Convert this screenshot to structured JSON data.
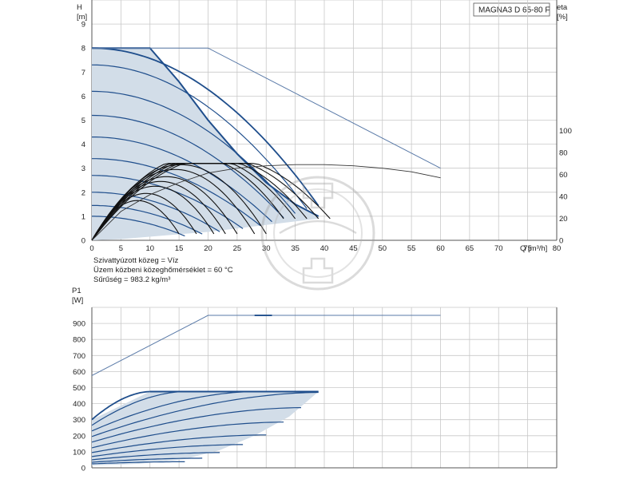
{
  "model": "MAGNA3 D 65-80 F",
  "info_lines": [
    "Szivattyúzott közeg = Víz",
    "Üzem közbeni közeghőmérséklet = 60 °C",
    "Sűrűség = 983.2 kg/m³"
  ],
  "chart_data": [
    {
      "type": "line",
      "title": "",
      "xlabel": "Q [m³/h]",
      "ylabel_unit": "[m]",
      "ylabel": "H",
      "y2label": "eta",
      "y2label_unit": "[%]",
      "xlim": [
        0,
        80
      ],
      "ylim": [
        0,
        10
      ],
      "y2lim": [
        0,
        100
      ],
      "grid": true,
      "x_ticks": [
        "0",
        "5",
        "10",
        "15",
        "20",
        "25",
        "30",
        "35",
        "40",
        "45",
        "50",
        "55",
        "60",
        "65",
        "70",
        "75",
        "80"
      ],
      "y_ticks": [
        "0",
        "1",
        "2",
        "3",
        "4",
        "5",
        "6",
        "7",
        "8",
        "9"
      ],
      "y2_ticks": [
        "0",
        "20",
        "40",
        "60",
        "80",
        "100"
      ],
      "operating_envelope": {
        "x": [
          0,
          10,
          15,
          20,
          25,
          30,
          35,
          39
        ],
        "y": [
          8,
          8,
          6.6,
          5.0,
          3.6,
          2.4,
          1.5,
          1.0
        ]
      },
      "max_curve_single_pump": {
        "x": [
          0,
          20,
          60
        ],
        "y": [
          8,
          8,
          3.0
        ]
      },
      "efficiency_envelope": {
        "x": [
          0,
          5,
          10,
          15,
          20,
          25,
          30,
          35,
          40,
          45,
          50,
          55,
          60
        ],
        "y": [
          0,
          1.2,
          1.9,
          2.4,
          2.8,
          3.0,
          3.1,
          3.15,
          3.15,
          3.1,
          3.0,
          2.85,
          2.6
        ]
      },
      "head_curves": [
        {
          "h0": 8.0,
          "q_end": 39
        },
        {
          "h0": 7.3,
          "q_end": 37
        },
        {
          "h0": 6.2,
          "q_end": 35
        },
        {
          "h0": 5.2,
          "q_end": 33
        },
        {
          "h0": 4.3,
          "q_end": 31
        },
        {
          "h0": 3.4,
          "q_end": 29
        },
        {
          "h0": 2.7,
          "q_end": 26
        },
        {
          "h0": 2.0,
          "q_end": 22
        },
        {
          "h0": 1.45,
          "q_end": 19
        },
        {
          "h0": 1.0,
          "q_end": 16
        }
      ],
      "efficiency_arcs_q_end": [
        15,
        18,
        21,
        23,
        25,
        28,
        30,
        33,
        35,
        37,
        39,
        41
      ]
    },
    {
      "type": "line",
      "title": "",
      "ylabel": "P1",
      "ylabel_unit": "[W]",
      "xlim": [
        0,
        80
      ],
      "ylim": [
        0,
        1000
      ],
      "grid": true,
      "y_ticks": [
        "0",
        "100",
        "200",
        "300",
        "400",
        "500",
        "600",
        "700",
        "800",
        "900"
      ],
      "max_power_curve": {
        "x": [
          0,
          20,
          60
        ],
        "y": [
          575,
          950,
          950
        ]
      },
      "power_envelope": {
        "x": [
          0,
          10,
          39,
          39,
          30,
          20,
          10,
          0
        ],
        "y": [
          300,
          475,
          475,
          475,
          270,
          100,
          40,
          20
        ]
      },
      "power_curves": [
        {
          "p0": 300,
          "p_end": 475,
          "q_end": 10
        },
        {
          "p0": 265,
          "p_end": 475,
          "q_end": 16
        },
        {
          "p0": 230,
          "p_end": 475,
          "q_end": 28
        },
        {
          "p0": 195,
          "p_end": 470,
          "q_end": 39
        },
        {
          "p0": 160,
          "p_end": 375,
          "q_end": 36
        },
        {
          "p0": 125,
          "p_end": 285,
          "q_end": 33
        },
        {
          "p0": 95,
          "p_end": 205,
          "q_end": 30
        },
        {
          "p0": 70,
          "p_end": 145,
          "q_end": 26
        },
        {
          "p0": 50,
          "p_end": 95,
          "q_end": 22
        },
        {
          "p0": 35,
          "p_end": 60,
          "q_end": 19
        },
        {
          "p0": 25,
          "p_end": 38,
          "q_end": 16
        }
      ]
    }
  ]
}
